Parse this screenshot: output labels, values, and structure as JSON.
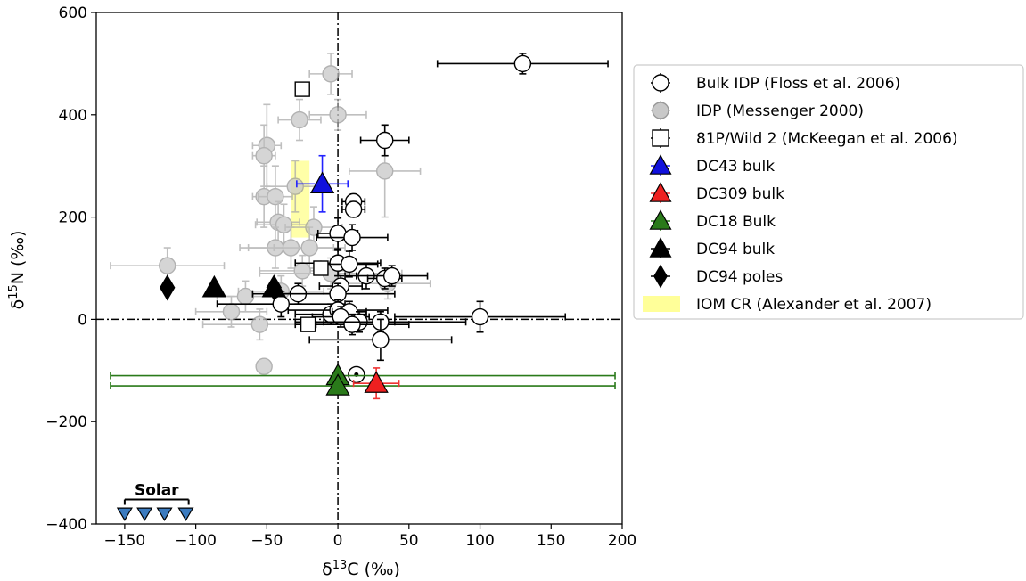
{
  "chart_data": {
    "type": "scatter",
    "title": "",
    "xlabel": "δ13C (‰)",
    "ylabel": "δ15N (‰)",
    "xlabel_parts": {
      "delta": "δ",
      "sup": "13",
      "base": "C (‰)"
    },
    "ylabel_parts": {
      "delta": "δ",
      "sup": "15",
      "base": "N (‰)"
    },
    "xlim": [
      -170,
      200
    ],
    "ylim": [
      -400,
      600
    ],
    "xticks": [
      -150,
      -100,
      -50,
      0,
      50,
      100,
      150,
      200
    ],
    "yticks": [
      -400,
      -200,
      0,
      200,
      400,
      600
    ],
    "xtick_labels": [
      "−150",
      "−100",
      "−50",
      "0",
      "50",
      "100",
      "150",
      "200"
    ],
    "ytick_labels": [
      "−400",
      "−200",
      "0",
      "200",
      "400",
      "600"
    ],
    "grid": false,
    "legend_position": "outside-right",
    "reference_lines": {
      "x": 0,
      "y": 0,
      "style": "dash-dot"
    },
    "region": {
      "name": "IOM CR (Alexander et al. 2007)",
      "x": [
        -33,
        -20
      ],
      "y": [
        160,
        310
      ],
      "color": "#ffff99"
    },
    "annotation": {
      "text": "Solar",
      "x": [
        -150,
        -105
      ],
      "y": -380
    },
    "series": [
      {
        "name": "Bulk IDP (Floss et al. 2006)",
        "marker": "circle",
        "face": "#ffffff",
        "edge": "#000000",
        "ecolor": "#000000",
        "points": [
          {
            "x": 130,
            "y": 500,
            "xerr": [
              60,
              60
            ],
            "yerr": [
              20,
              20
            ]
          },
          {
            "x": 33,
            "y": 350,
            "xerr": [
              17,
              17
            ],
            "yerr": [
              30,
              30
            ]
          },
          {
            "x": 11,
            "y": 230,
            "xerr": [
              8,
              8
            ],
            "yerr": [
              15,
              15
            ]
          },
          {
            "x": 11,
            "y": 215,
            "xerr": [
              8,
              8
            ],
            "yerr": [
              15,
              15
            ]
          },
          {
            "x": 0,
            "y": 168,
            "xerr": [
              14,
              14
            ],
            "yerr": [
              30,
              30
            ]
          },
          {
            "x": 10,
            "y": 160,
            "xerr": [
              25,
              25
            ],
            "yerr": [
              25,
              25
            ]
          },
          {
            "x": 0,
            "y": 110,
            "xerr": [
              30,
              30
            ],
            "yerr": [
              25,
              25
            ]
          },
          {
            "x": 8,
            "y": 108,
            "xerr": [
              20,
              20
            ],
            "yerr": [
              25,
              25
            ]
          },
          {
            "x": 20,
            "y": 85,
            "xerr": [
              15,
              15
            ],
            "yerr": [
              25,
              25
            ]
          },
          {
            "x": 33,
            "y": 80,
            "xerr": [
              12,
              12
            ],
            "yerr": [
              20,
              20
            ]
          },
          {
            "x": 38,
            "y": 85,
            "xerr": [
              25,
              25
            ],
            "yerr": [
              20,
              20
            ]
          },
          {
            "x": 2,
            "y": 65,
            "xerr": [
              15,
              15
            ],
            "yerr": [
              20,
              20
            ]
          },
          {
            "x": -28,
            "y": 50,
            "xerr": [
              32,
              32
            ],
            "yerr": [
              20,
              20
            ]
          },
          {
            "x": 0,
            "y": 50,
            "xerr": [
              40,
              40
            ],
            "yerr": [
              20,
              20
            ]
          },
          {
            "x": -40,
            "y": 30,
            "xerr": [
              45,
              45
            ],
            "yerr": [
              25,
              25
            ]
          },
          {
            "x": -5,
            "y": 10,
            "xerr": [
              25,
              25
            ],
            "yerr": [
              20,
              20
            ]
          },
          {
            "x": 0,
            "y": 18,
            "xerr": [
              35,
              35
            ],
            "yerr": [
              20,
              20
            ]
          },
          {
            "x": 8,
            "y": 15,
            "xerr": [
              12,
              12
            ],
            "yerr": [
              20,
              20
            ]
          },
          {
            "x": 2,
            "y": 5,
            "xerr": [
              20,
              20
            ],
            "yerr": [
              20,
              20
            ]
          },
          {
            "x": 15,
            "y": -5,
            "xerr": [
              25,
              25
            ],
            "yerr": [
              20,
              20
            ]
          },
          {
            "x": 10,
            "y": -10,
            "xerr": [
              40,
              40
            ],
            "yerr": [
              20,
              20
            ]
          },
          {
            "x": 30,
            "y": -5,
            "xerr": [
              60,
              60
            ],
            "yerr": [
              20,
              20
            ]
          },
          {
            "x": 100,
            "y": 5,
            "xerr": [
              60,
              60
            ],
            "yerr": [
              30,
              30
            ]
          },
          {
            "x": 30,
            "y": -40,
            "xerr": [
              50,
              50
            ],
            "yerr": [
              40,
              40
            ]
          },
          {
            "x": 13,
            "y": -108,
            "xerr": [
              5,
              5
            ],
            "yerr": [
              5,
              5
            ],
            "dot": true
          }
        ]
      },
      {
        "name": "IDP (Messenger 2000)",
        "marker": "circle",
        "face": "#c8c8c8",
        "edge": "#999999",
        "ecolor": "#aaaaaa",
        "points": [
          {
            "x": -5,
            "y": 480,
            "xerr": [
              15,
              15
            ],
            "yerr": [
              40,
              40
            ]
          },
          {
            "x": -27,
            "y": 390,
            "xerr": [
              15,
              15
            ],
            "yerr": [
              40,
              40
            ]
          },
          {
            "x": 0,
            "y": 400,
            "xerr": [
              20,
              20
            ],
            "yerr": [
              30,
              30
            ]
          },
          {
            "x": -50,
            "y": 340,
            "xerr": [
              10,
              10
            ],
            "yerr": [
              80,
              80
            ]
          },
          {
            "x": -52,
            "y": 320,
            "xerr": [
              8,
              8
            ],
            "yerr": [
              60,
              60
            ]
          },
          {
            "x": 33,
            "y": 290,
            "xerr": [
              25,
              25
            ],
            "yerr": [
              90,
              90
            ]
          },
          {
            "x": -30,
            "y": 260,
            "xerr": [
              20,
              20
            ],
            "yerr": [
              50,
              50
            ]
          },
          {
            "x": -52,
            "y": 240,
            "xerr": [
              8,
              8
            ],
            "yerr": [
              60,
              60
            ]
          },
          {
            "x": -44,
            "y": 240,
            "xerr": [
              12,
              12
            ],
            "yerr": [
              60,
              60
            ]
          },
          {
            "x": -42,
            "y": 190,
            "xerr": [
              15,
              15
            ],
            "yerr": [
              40,
              40
            ]
          },
          {
            "x": -38,
            "y": 185,
            "xerr": [
              20,
              20
            ],
            "yerr": [
              40,
              40
            ]
          },
          {
            "x": -17,
            "y": 180,
            "xerr": [
              20,
              20
            ],
            "yerr": [
              40,
              40
            ]
          },
          {
            "x": -44,
            "y": 140,
            "xerr": [
              25,
              25
            ],
            "yerr": [
              40,
              40
            ]
          },
          {
            "x": -33,
            "y": 140,
            "xerr": [
              30,
              30
            ],
            "yerr": [
              40,
              40
            ]
          },
          {
            "x": -20,
            "y": 140,
            "xerr": [
              25,
              25
            ],
            "yerr": [
              40,
              40
            ]
          },
          {
            "x": -120,
            "y": 105,
            "xerr": [
              40,
              40
            ],
            "yerr": [
              35,
              35
            ]
          },
          {
            "x": -25,
            "y": 95,
            "xerr": [
              30,
              30
            ],
            "yerr": [
              30,
              30
            ]
          },
          {
            "x": -5,
            "y": 90,
            "xerr": [
              50,
              50
            ],
            "yerr": [
              30,
              30
            ]
          },
          {
            "x": 35,
            "y": 70,
            "xerr": [
              30,
              30
            ],
            "yerr": [
              30,
              30
            ]
          },
          {
            "x": -40,
            "y": 55,
            "xerr": [
              30,
              30
            ],
            "yerr": [
              30,
              30
            ]
          },
          {
            "x": -65,
            "y": 45,
            "xerr": [
              20,
              20
            ],
            "yerr": [
              30,
              30
            ]
          },
          {
            "x": -75,
            "y": 15,
            "xerr": [
              25,
              25
            ],
            "yerr": [
              30,
              30
            ]
          },
          {
            "x": -55,
            "y": -10,
            "xerr": [
              40,
              40
            ],
            "yerr": [
              30,
              30
            ]
          },
          {
            "x": -52,
            "y": -92,
            "xerr": [
              3,
              3
            ],
            "yerr": [
              8,
              8
            ]
          }
        ]
      },
      {
        "name": "81P/Wild 2 (McKeegan et al. 2006)",
        "marker": "square",
        "face": "#ffffff",
        "edge": "#000000",
        "ecolor": "#000000",
        "points": [
          {
            "x": -25,
            "y": 450
          },
          {
            "x": -12,
            "y": 100
          },
          {
            "x": -21,
            "y": -10
          }
        ]
      },
      {
        "name": "DC43 bulk",
        "marker": "triangle-up",
        "face": "#1010dd",
        "edge": "#000000",
        "ecolor": "#2222ff",
        "points": [
          {
            "x": -11,
            "y": 265,
            "xerr": [
              18,
              18
            ],
            "yerr": [
              55,
              55
            ]
          }
        ]
      },
      {
        "name": "DC309 bulk",
        "marker": "triangle-up",
        "face": "#ee2020",
        "edge": "#000000",
        "ecolor": "#ee3333",
        "points": [
          {
            "x": 27,
            "y": -125,
            "xerr": [
              16,
              16
            ],
            "yerr": [
              30,
              30
            ]
          }
        ]
      },
      {
        "name": "DC18 Bulk",
        "marker": "triangle-up",
        "face": "#2a7a1a",
        "edge": "#000000",
        "ecolor": "#2a7a1a",
        "points": [
          {
            "x": 0,
            "y": -110,
            "xerr": [
              160,
              195
            ],
            "yerr": [
              0,
              0
            ]
          },
          {
            "x": 0,
            "y": -130,
            "xerr": [
              160,
              195
            ],
            "yerr": [
              0,
              0
            ]
          }
        ]
      },
      {
        "name": "DC94 bulk",
        "marker": "triangle-up",
        "face": "#000000",
        "edge": "#000000",
        "ecolor": "#000000",
        "points": [
          {
            "x": -87,
            "y": 62
          },
          {
            "x": -45,
            "y": 62
          }
        ]
      },
      {
        "name": "DC94 poles",
        "marker": "diamond",
        "face": "#000000",
        "edge": "#000000",
        "ecolor": "#000000",
        "points": [
          {
            "x": -120,
            "y": 62
          },
          {
            "x": -45,
            "y": 62
          }
        ]
      },
      {
        "name": "Solar",
        "marker": "triangle-down",
        "face": "#3b7bbf",
        "edge": "#000000",
        "ecolor": "#000000",
        "legend": false,
        "points": [
          {
            "x": -150,
            "y": -380
          },
          {
            "x": -136,
            "y": -380
          },
          {
            "x": -122,
            "y": -380
          },
          {
            "x": -107,
            "y": -380
          }
        ]
      }
    ]
  }
}
